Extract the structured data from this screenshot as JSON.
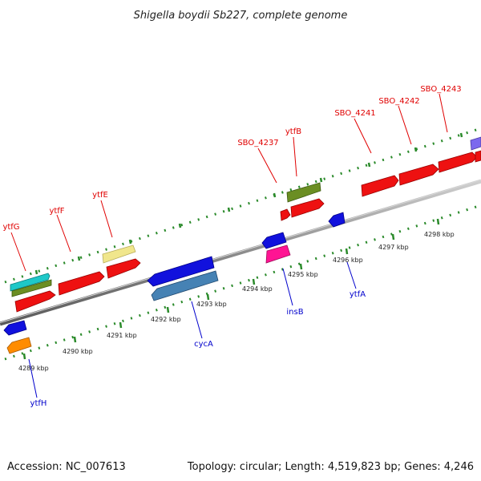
{
  "title": "Shigella boydii Sb227, complete genome",
  "accession": "Accession: NC_007613",
  "summary": "Topology: circular; Length: 4,519,823 bp; Genes: 4,246",
  "colors": {
    "forward_label": "#e00000",
    "reverse_label": "#0000cc",
    "backbone": "#8a8a8a",
    "tick": "#2a8a2a"
  },
  "kbp_ticks": [
    "4289 kbp",
    "4290 kbp",
    "4291 kbp",
    "4292 kbp",
    "4293 kbp",
    "4294 kbp",
    "4295 kbp",
    "4296 kbp",
    "4297 kbp",
    "4298 kbp"
  ],
  "forward_genes": [
    "ytfG",
    "ytfF",
    "ytfE",
    "SBO_4237",
    "ytfB",
    "SBO_4241",
    "SBO_4242",
    "SBO_4243"
  ],
  "reverse_genes": [
    "ytfH",
    "cycA",
    "insB",
    "ytfA"
  ]
}
